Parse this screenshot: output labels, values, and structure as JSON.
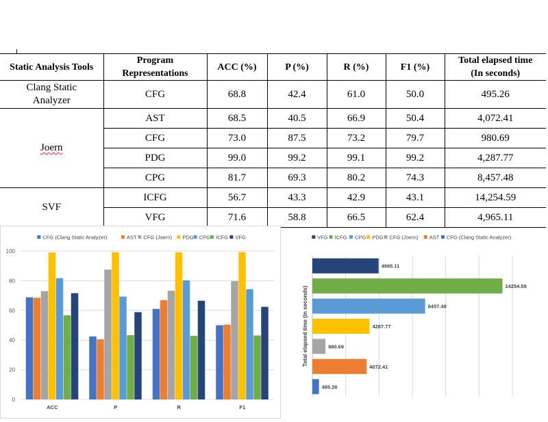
{
  "table": {
    "headers": {
      "tool": "Static Analysis Tools",
      "rep_line1": "Program",
      "rep_line2": "Representations",
      "acc": "ACC (%)",
      "p": "P (%)",
      "r": "R (%)",
      "f1": "F1 (%)",
      "time_line1": "Total elapsed time",
      "time_line2": "(In seconds)"
    },
    "groups": [
      {
        "tool_line1": "Clang Static",
        "tool_line2": "Analyzer"
      },
      {
        "tool_line1": "Joern",
        "tool_line2": ""
      },
      {
        "tool_line1": "SVF",
        "tool_line2": ""
      }
    ],
    "rows": [
      {
        "rep": "CFG",
        "acc": "68.8",
        "p": "42.4",
        "r": "61.0",
        "f1": "50.0",
        "time": "495.26"
      },
      {
        "rep": "AST",
        "acc": "68.5",
        "p": "40.5",
        "r": "66.9",
        "f1": "50.4",
        "time": "4,072.41"
      },
      {
        "rep": "CFG",
        "acc": "73.0",
        "p": "87.5",
        "r": "73.2",
        "f1": "79.7",
        "time": "980.69"
      },
      {
        "rep": "PDG",
        "acc": "99.0",
        "p": "99.2",
        "r": "99.1",
        "f1": "99.2",
        "time": "4,287.77"
      },
      {
        "rep": "CPG",
        "acc": "81.7",
        "p": "69.3",
        "r": "80.2",
        "f1": "74.3",
        "time": "8,457.48"
      },
      {
        "rep": "ICFG",
        "acc": "56.7",
        "p": "43.3",
        "r": "42.9",
        "f1": "43.1",
        "time": "14,254.59"
      },
      {
        "rep": "VFG",
        "acc": "71.6",
        "p": "58.8",
        "r": "66.5",
        "f1": "62.4",
        "time": "4,965.11"
      }
    ]
  },
  "chart_data": [
    {
      "type": "bar",
      "categories": [
        "ACC",
        "P",
        "R",
        "F1"
      ],
      "ylim": [
        0,
        100
      ],
      "yticks": [
        0,
        20,
        40,
        60,
        80,
        100
      ],
      "grid": true,
      "legend_position": "top",
      "series": [
        {
          "name": "CFG (Clang Static Analyzer)",
          "color": "#4472C4",
          "values": [
            68.8,
            42.4,
            61.0,
            50.0
          ]
        },
        {
          "name": "AST",
          "color": "#ED7D31",
          "values": [
            68.5,
            40.5,
            66.9,
            50.4
          ]
        },
        {
          "name": "CFG (Joern)",
          "color": "#A5A5A5",
          "values": [
            73.0,
            87.5,
            73.2,
            79.7
          ]
        },
        {
          "name": "PDG",
          "color": "#FFC000",
          "values": [
            99.0,
            99.2,
            99.1,
            99.2
          ]
        },
        {
          "name": "CPG",
          "color": "#5B9BD5",
          "values": [
            81.7,
            69.3,
            80.2,
            74.3
          ]
        },
        {
          "name": "ICFG",
          "color": "#70AD47",
          "values": [
            56.7,
            43.3,
            42.9,
            43.1
          ]
        },
        {
          "name": "VFG",
          "color": "#264478",
          "values": [
            71.6,
            58.8,
            66.5,
            62.4
          ]
        }
      ]
    },
    {
      "type": "bar",
      "orientation": "horizontal",
      "ylabel": "Total elapsed time (in seconds)",
      "grid": true,
      "legend_position": "top",
      "legend_order": [
        "VFG",
        "ICFG",
        "CPG",
        "PDG",
        "CFG (Joern)",
        "AST",
        "CFG (Clang Static Analyzer)"
      ],
      "bars_top_to_bottom": [
        {
          "name": "VFG",
          "color": "#264478",
          "value": 4965.11,
          "label": "4965.11"
        },
        {
          "name": "ICFG",
          "color": "#70AD47",
          "value": 14254.59,
          "label": "14254.59"
        },
        {
          "name": "CPG",
          "color": "#5B9BD5",
          "value": 8457.48,
          "label": "8457.48"
        },
        {
          "name": "PDG",
          "color": "#FFC000",
          "value": 4287.77,
          "label": "4287.77"
        },
        {
          "name": "CFG (Joern)",
          "color": "#A5A5A5",
          "value": 980.69,
          "label": "980.69"
        },
        {
          "name": "AST",
          "color": "#ED7D31",
          "value": 4072.41,
          "label": "4072.41"
        },
        {
          "name": "CFG (Clang Static Analyzer)",
          "color": "#4472C4",
          "value": 495.26,
          "label": "495.26"
        }
      ]
    }
  ]
}
